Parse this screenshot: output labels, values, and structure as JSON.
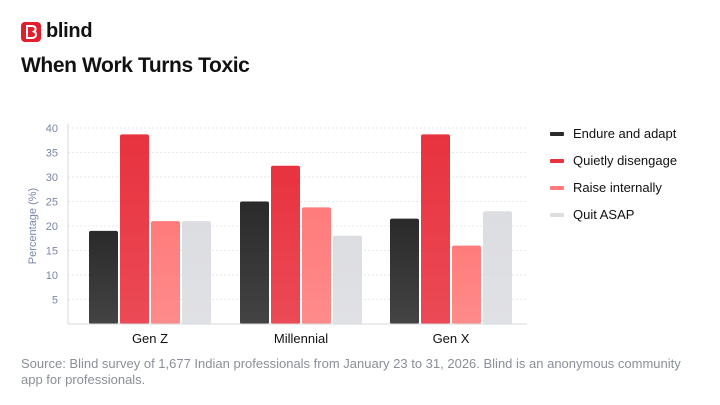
{
  "brand": {
    "name": "blind",
    "color": "#e11d2e"
  },
  "title": "When Work Turns Toxic",
  "source": "Source: Blind survey of 1,677 Indian professionals from January 23 to 31, 2026. Blind is an anonymous community app for professionals.",
  "chart_data": {
    "type": "bar",
    "categories": [
      "Gen Z",
      "Millennial",
      "Gen X"
    ],
    "series": [
      {
        "name": "Endure and adapt",
        "values": [
          19,
          25,
          21.5
        ],
        "color": "#2a2a2a"
      },
      {
        "name": "Quietly disengage",
        "values": [
          38.7,
          32.3,
          38.7
        ],
        "color": "#e8323f"
      },
      {
        "name": "Raise internally",
        "values": [
          21,
          23.8,
          16
        ],
        "color": "#ff7b7b"
      },
      {
        "name": "Quit ASAP",
        "values": [
          21,
          18,
          23
        ],
        "color": "#dcdde1"
      }
    ],
    "ylabel": "Percentage (%)",
    "ylim": [
      0,
      40
    ],
    "yticks": [
      5,
      10,
      15,
      20,
      25,
      30,
      35,
      40
    ],
    "grid": true,
    "legend_position": "right"
  }
}
